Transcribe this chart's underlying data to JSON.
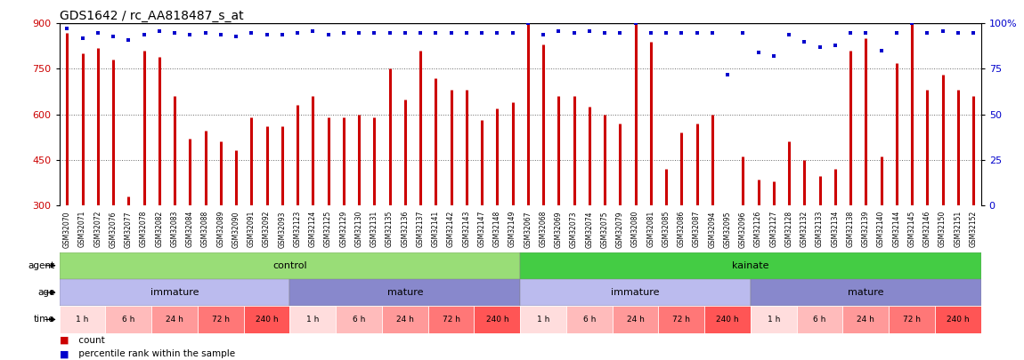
{
  "title": "GDS1642 / rc_AA818487_s_at",
  "samples": [
    "GSM32070",
    "GSM32071",
    "GSM32072",
    "GSM32076",
    "GSM32077",
    "GSM32078",
    "GSM32082",
    "GSM32083",
    "GSM32084",
    "GSM32088",
    "GSM32089",
    "GSM32090",
    "GSM32091",
    "GSM32092",
    "GSM32093",
    "GSM32123",
    "GSM32124",
    "GSM32125",
    "GSM32129",
    "GSM32130",
    "GSM32131",
    "GSM32135",
    "GSM32136",
    "GSM32137",
    "GSM32141",
    "GSM32142",
    "GSM32143",
    "GSM32147",
    "GSM32148",
    "GSM32149",
    "GSM32067",
    "GSM32068",
    "GSM32069",
    "GSM32073",
    "GSM32074",
    "GSM32075",
    "GSM32079",
    "GSM32080",
    "GSM32081",
    "GSM32085",
    "GSM32086",
    "GSM32087",
    "GSM32094",
    "GSM32095",
    "GSM32096",
    "GSM32126",
    "GSM32127",
    "GSM32128",
    "GSM32132",
    "GSM32133",
    "GSM32134",
    "GSM32138",
    "GSM32139",
    "GSM32140",
    "GSM32144",
    "GSM32145",
    "GSM32146",
    "GSM32150",
    "GSM32151",
    "GSM32152"
  ],
  "counts": [
    870,
    800,
    820,
    780,
    330,
    810,
    790,
    660,
    520,
    545,
    510,
    480,
    590,
    560,
    560,
    630,
    660,
    590,
    590,
    600,
    590,
    750,
    650,
    810,
    720,
    680,
    680,
    580,
    620,
    640,
    900,
    830,
    660,
    660,
    625,
    600,
    570,
    930,
    840,
    420,
    540,
    570,
    600,
    280,
    460,
    385,
    380,
    510,
    450,
    395,
    420,
    810,
    850,
    460,
    770,
    930,
    680,
    730,
    680,
    660
  ],
  "percentiles": [
    97,
    92,
    95,
    93,
    91,
    94,
    96,
    95,
    94,
    95,
    94,
    93,
    95,
    94,
    94,
    95,
    96,
    94,
    95,
    95,
    95,
    95,
    95,
    95,
    95,
    95,
    95,
    95,
    95,
    95,
    100,
    94,
    96,
    95,
    96,
    95,
    95,
    100,
    95,
    95,
    95,
    95,
    95,
    72,
    95,
    84,
    82,
    94,
    90,
    87,
    88,
    95,
    95,
    85,
    95,
    100,
    95,
    96,
    95,
    95
  ],
  "ylim_left": [
    300,
    900
  ],
  "ylim_right": [
    0,
    100
  ],
  "yticks_left": [
    300,
    450,
    600,
    750,
    900
  ],
  "yticks_right": [
    0,
    25,
    50,
    75,
    100
  ],
  "bar_color": "#cc0000",
  "dot_color": "#0000cc",
  "bg_color": "#ffffff",
  "agent_control_color": "#99dd77",
  "agent_kainate_color": "#44cc44",
  "age_immature_color": "#bbbbee",
  "age_mature_color": "#8888cc",
  "time_colors": [
    "#ffdddd",
    "#ffbbbb",
    "#ff9999",
    "#ff7777",
    "#ff5555"
  ],
  "time_labels": [
    "1 h",
    "6 h",
    "24 h",
    "72 h",
    "240 h"
  ],
  "legend_count_color": "#cc0000",
  "legend_pct_color": "#0000cc"
}
